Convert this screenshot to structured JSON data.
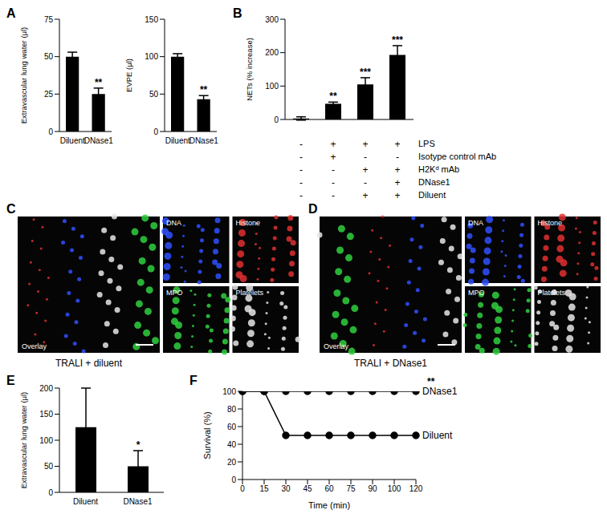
{
  "chart_data": [
    {
      "panel": "A",
      "type": "bar",
      "ylabel": "Extravascular lung water (μl)",
      "categories": [
        "Diluent",
        "DNase1"
      ],
      "values": [
        50,
        25
      ],
      "errors": [
        3,
        4
      ],
      "significance": [
        null,
        "**"
      ],
      "color": "#000000",
      "ylim": [
        0,
        75
      ],
      "yticks": [
        0,
        25,
        50,
        75
      ]
    },
    {
      "panel": "A",
      "type": "bar",
      "ylabel": "EVPE (μl)",
      "categories": [
        "Diluent",
        "DNase1"
      ],
      "values": [
        100,
        43
      ],
      "errors": [
        4,
        5
      ],
      "significance": [
        null,
        "**"
      ],
      "color": "#000000",
      "ylim": [
        0,
        150
      ],
      "yticks": [
        0,
        50,
        100,
        150
      ]
    },
    {
      "panel": "B",
      "type": "bar",
      "ylabel": "NETs (% increase)",
      "categories": [
        null,
        null,
        null,
        null
      ],
      "values": [
        3,
        47,
        105,
        193
      ],
      "errors": [
        5,
        5,
        20,
        28
      ],
      "significance": [
        null,
        "**",
        "***",
        "***"
      ],
      "color": "#000000",
      "ylim": [
        0,
        300
      ],
      "yticks": [
        0,
        100,
        200,
        300
      ],
      "tick_labels": "y",
      "table": [
        {
          "label": "LPS",
          "cells": [
            "-",
            "+",
            "+",
            "+"
          ]
        },
        {
          "label": "Isotype control mAb",
          "cells": [
            "-",
            "+",
            "-",
            "-"
          ]
        },
        {
          "label": "H2Kᵈ mAb",
          "cells": [
            "-",
            "-",
            "+",
            "+"
          ]
        },
        {
          "label": "DNase1",
          "cells": [
            "-",
            "-",
            "-",
            "+"
          ]
        },
        {
          "label": "Diluent",
          "cells": [
            "-",
            "-",
            "+",
            "+"
          ]
        }
      ]
    },
    {
      "panel": "E",
      "type": "bar",
      "ylabel": "Extravascular lung water (μl)",
      "categories": [
        "Diluent",
        "DNase1"
      ],
      "values": [
        125,
        50
      ],
      "errors": [
        75,
        30
      ],
      "significance": [
        null,
        "*"
      ],
      "color": "#000000",
      "ylim": [
        0,
        200
      ],
      "yticks": [
        0,
        50,
        100,
        150,
        200
      ]
    },
    {
      "panel": "F",
      "type": "line",
      "xlabel": "Time (min)",
      "ylabel": "Survival (%)",
      "categories": [
        "0",
        "15",
        "30",
        "45",
        "60",
        "75",
        "90",
        "100",
        "120"
      ],
      "series": [
        {
          "name": "DNase1",
          "color": "#000000",
          "marker": "circle",
          "line_style": "solid",
          "values": [
            100,
            100,
            100,
            100,
            100,
            100,
            100,
            100,
            100
          ],
          "significance": "**"
        },
        {
          "name": "Diluent",
          "color": "#000000",
          "marker": "circle",
          "line_style": "solid",
          "values": [
            100,
            100,
            50,
            50,
            50,
            50,
            50,
            50,
            50
          ]
        }
      ],
      "ylim": [
        0,
        100
      ],
      "yticks": [
        0,
        20,
        40,
        60,
        80,
        100
      ]
    }
  ],
  "images": [
    {
      "panel": "C",
      "caption": "TRALI + diluent",
      "main_label": "Overlay",
      "channels": [
        "DNA",
        "Histone",
        "MPO",
        "Platelets"
      ]
    },
    {
      "panel": "D",
      "caption": "TRALI + DNase1",
      "main_label": "Overlay",
      "channels": [
        "DNA",
        "Histone",
        "MPO",
        "Platelets"
      ]
    }
  ]
}
